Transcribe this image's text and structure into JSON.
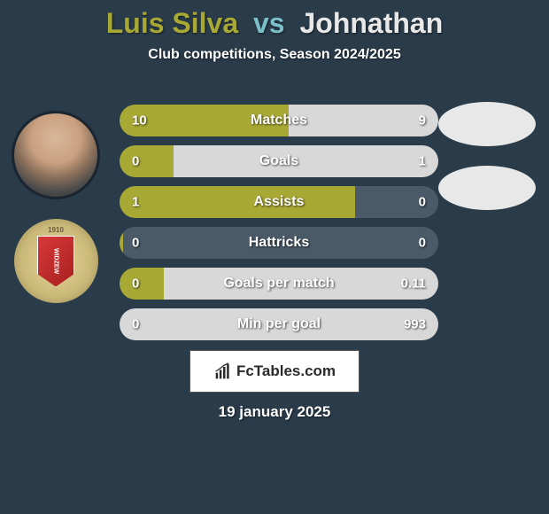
{
  "player1": {
    "name": "Luis Silva",
    "color": "#a8a835"
  },
  "player2": {
    "name": "Johnathan",
    "color": "#e8e8e8"
  },
  "vs_label": "vs",
  "vs_color": "#7bbfc9",
  "subtitle": "Club competitions, Season 2024/2025",
  "background_color": "#2a3b4a",
  "bars": {
    "track_bg": "#4a5a68",
    "p1_color": "#a8a835",
    "p2_color": "#d8d8d8",
    "rows": [
      {
        "label": "Matches",
        "v1": "10",
        "v2": "9",
        "p1_frac": 0.53,
        "p2_frac": 0.47
      },
      {
        "label": "Goals",
        "v1": "0",
        "v2": "1",
        "p1_frac": 0.17,
        "p2_frac": 0.83
      },
      {
        "label": "Assists",
        "v1": "1",
        "v2": "0",
        "p1_frac": 0.74,
        "p2_frac": 0.0
      },
      {
        "label": "Hattricks",
        "v1": "0",
        "v2": "0",
        "p1_frac": 0.01,
        "p2_frac": 0.0
      },
      {
        "label": "Goals per match",
        "v1": "0",
        "v2": "0.11",
        "p1_frac": 0.14,
        "p2_frac": 0.86
      },
      {
        "label": "Min per goal",
        "v1": "0",
        "v2": "993",
        "p1_frac": 0.0,
        "p2_frac": 1.0
      }
    ]
  },
  "logo_text": "FcTables.com",
  "date": "19 january 2025",
  "crest_year": "1910",
  "crest_text": "WIDZEW"
}
